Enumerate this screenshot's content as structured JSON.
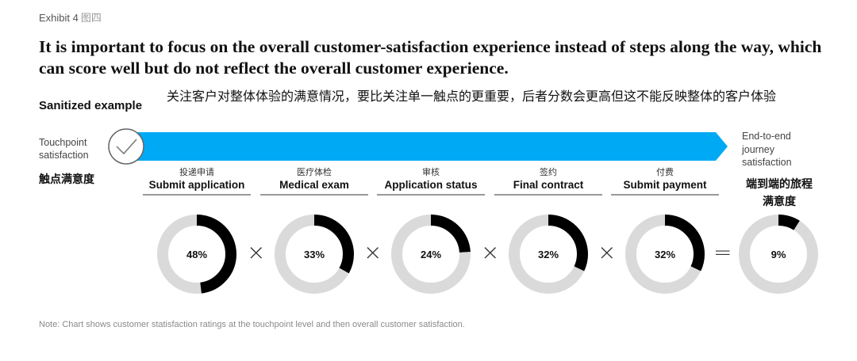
{
  "exhibit": {
    "label": "Exhibit 4",
    "label_cn": "图四"
  },
  "title": "It is important to focus on the overall customer-satisfaction experience instead of steps along the way, which can score well but do not reflect the overall customer experience.",
  "sanitized_label": "Sanitized example",
  "subtitle_cn": "关注客户对整体体验的满意情况，要比关注单一触点的更重要，后者分数会更高但这不能反映整体的客户体验",
  "touchpoint": {
    "label_line1": "Touchpoint",
    "label_line2": "satisfaction",
    "label_cn": "触点满意度"
  },
  "end_to_end": {
    "label_line1": "End-to-end",
    "label_line2": "journey",
    "label_line3": "satisfaction",
    "label_cn_line1": "端到端的旅程",
    "label_cn_line2": "满意度"
  },
  "operators": {
    "times": "×",
    "equals": "="
  },
  "note": "Note: Chart shows customer statisfaction ratings at the touchpoint level and then overall customer satisfaction.",
  "colors": {
    "arrow": "#00A9F4",
    "ring_bg": "#DADADA",
    "ring_fg": "#000000"
  },
  "chart_data": {
    "type": "donut",
    "title": "It is important to focus on the overall customer-satisfaction experience instead of steps along the way, which can score well but do not reflect the overall customer experience.",
    "categories": [
      "Submit application",
      "Medical exam",
      "Application status",
      "Final contract",
      "Submit payment",
      "End-to-end journey satisfaction"
    ],
    "categories_cn": [
      "投递申请",
      "医疗体检",
      "审核",
      "签约",
      "付费",
      "端到端的旅程满意度"
    ],
    "values": [
      48,
      33,
      24,
      32,
      32,
      9
    ],
    "labels": [
      "48%",
      "33%",
      "24%",
      "32%",
      "32%",
      "9%"
    ],
    "unit": "%"
  }
}
